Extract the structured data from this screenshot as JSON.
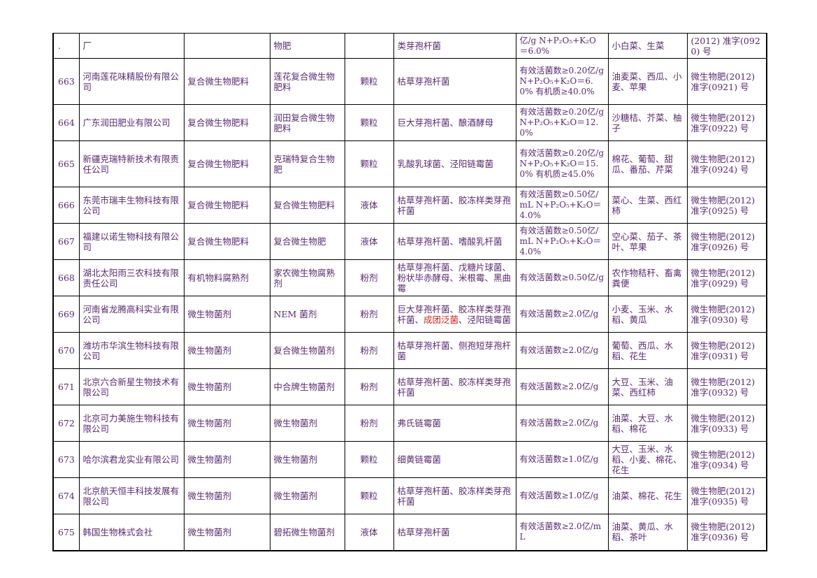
{
  "table": {
    "continuation_row": {
      "num": ".",
      "company": "厂",
      "type": "",
      "product": "物肥",
      "form": "",
      "strain": "类芽孢杆菌",
      "content": "亿/g N+P₂O₅+K₂O＝6.0%",
      "crops": "小白菜、生菜",
      "license": "(2012) 准字(0920) 号"
    },
    "rows": [
      {
        "num": "663",
        "company": "河南莲花味精股份有限公司",
        "type": "复合微生物肥料",
        "product": "莲花复合微生物肥料",
        "form": "颗粒",
        "strain": "枯草芽孢杆菌",
        "content": "有效活菌数≥0.20亿/g N+P₂O₅+K₂O＝6.0% 有机质≥40.0%",
        "crops": "油麦菜、西瓜、小麦、苹果",
        "license": "微生物肥(2012) 准字(0921) 号"
      },
      {
        "num": "664",
        "company": "广东润田肥业有限公司",
        "type": "复合微生物肥料",
        "product": "润田复合微生物肥料",
        "form": "颗粒",
        "strain": "巨大芽孢杆菌、酿酒酵母",
        "content": "有效活菌数≥0.20亿/g N+P₂O₅+K₂O＝12.0%",
        "crops": "沙糖桔、芥菜、柚子",
        "license": "微生物肥(2012) 准字(0922) 号"
      },
      {
        "num": "665",
        "company": "新疆克瑞特新技术有限责任公司",
        "type": "复合微生物肥料",
        "product": "克瑞特复合生物肥",
        "form": "颗粒",
        "strain": "乳酸乳球菌、泾阳链霉菌",
        "content": "有效活菌数≥0.20亿/g N+P₂O₅+K₂O＝15.0% 有机质≥45.0%",
        "crops": "棉花、葡萄、甜瓜、番茄、芹菜",
        "license": "微生物肥(2012) 准字(0924) 号"
      },
      {
        "num": "666",
        "company": "东莞市瑞丰生物科技有限公司",
        "type": "复合微生物肥料",
        "product": "复合微生物肥料",
        "form": "液体",
        "strain": "枯草芽孢杆菌、胶冻样类芽孢杆菌",
        "content": "有效活菌数≥0.50亿/mL N+P₂O₅+K₂O＝4.0%",
        "crops": "菜心、生菜、西红柿",
        "license": "微生物肥(2012) 准字(0925) 号"
      },
      {
        "num": "667",
        "company": "福建以诺生物科技有限公司",
        "type": "复合微生物肥料",
        "product": "复合微生物肥",
        "form": "液体",
        "strain": "枯草芽孢杆菌、嗜酸乳杆菌",
        "content": "有效活菌数≥0.50亿/mL N+P₂O₅+K₂O＝4.0%",
        "crops": "空心菜、茄子、茶叶、苹果",
        "license": "微生物肥(2012) 准字(0926) 号"
      },
      {
        "num": "668",
        "company": "湖北太阳雨三农科技有限责任公司",
        "type": "有机物料腐熟剂",
        "product": "家农微生物腐熟剂",
        "form": "粉剂",
        "strain": "枯草芽孢杆菌、戊糖片球菌、粉状毕赤酵母、米根霉、黑曲霉",
        "content": "有效活菌数≥0.50亿/g",
        "crops": "农作物秸秆、畜禽粪便",
        "license": "微生物肥(2012) 准字(0929) 号"
      },
      {
        "num": "669",
        "company": "河南省龙腾高科实业有限公司",
        "type": "微生物菌剂",
        "product": "NEM 菌剂",
        "form": "粉剂",
        "strain_a": "巨大芽孢杆菌、胶冻样类芽孢杆菌、",
        "strain_red": "成团泛菌",
        "strain_b": "、泾阳链霉菌",
        "content": "有效活菌数≥2.0亿/g",
        "crops": "小麦、玉米、水稻、黄瓜",
        "license": "微生物肥(2012) 准字(0930) 号"
      },
      {
        "num": "670",
        "company": "潍坊市华滨生物科技有限公司",
        "type": "微生物菌剂",
        "product": "复合微生物菌剂",
        "form": "粉剂",
        "strain": "枯草芽孢杆菌、侧孢短芽孢杆菌",
        "content": "有效活菌数≥2.0亿/g",
        "crops": "葡萄、西瓜、水稻、花生",
        "license": "微生物肥(2012) 准字(0931) 号"
      },
      {
        "num": "671",
        "company": "北京六合新星生物技术有限公司",
        "type": "微生物菌剂",
        "product": "中合牌生物菌剂",
        "form": "粉剂",
        "strain": "枯草芽孢杆菌、胶冻样类芽孢杆菌",
        "content": "有效活菌数≥2.0亿/g",
        "crops": "大豆、玉米、油菜、西红柿",
        "license": "微生物肥(2012) 准字(0932) 号"
      },
      {
        "num": "672",
        "company": "北京可力美施生物科技有限公司",
        "type": "微生物菌剂",
        "product": "微生物菌剂",
        "form": "粉剂",
        "strain": "弗氏链霉菌",
        "content": "有效活菌数≥2.0亿/g",
        "crops": "油菜、大豆、水稻、棉花",
        "license": "微生物肥(2012) 准字(0933) 号"
      },
      {
        "num": "673",
        "company": "哈尔滨君龙实业有限公司",
        "type": "微生物菌剂",
        "product": "微生物菌剂",
        "form": "颗粒",
        "strain": "细黄链霉菌",
        "content": "有效活菌数≥1.0亿/g",
        "crops": "大豆、玉米、水稻、小麦、棉花、花生",
        "license": "微生物肥(2012) 准字(0934) 号"
      },
      {
        "num": "674",
        "company": "北京航天恒丰科技发展有限公司",
        "type": "微生物菌剂",
        "product": "微生物菌剂",
        "form": "颗粒",
        "strain": "枯草芽孢杆菌、胶冻样类芽孢杆菌",
        "content": "有效活菌数≥1.0亿/g",
        "crops": "油菜、棉花、花生",
        "license": "微生物肥(2012) 准字(0935) 号"
      },
      {
        "num": "675",
        "company": "韩国生物株式会社",
        "type": "微生物菌剂",
        "product": "碧拓微生物菌剂",
        "form": "液体",
        "strain": "枯草芽孢杆菌",
        "content": "有效活菌数≥2.0亿/mL",
        "crops": "油菜、黄瓜、水稻、茶叶",
        "license": "微生物肥(2012) 准字(0936) 号"
      }
    ]
  }
}
